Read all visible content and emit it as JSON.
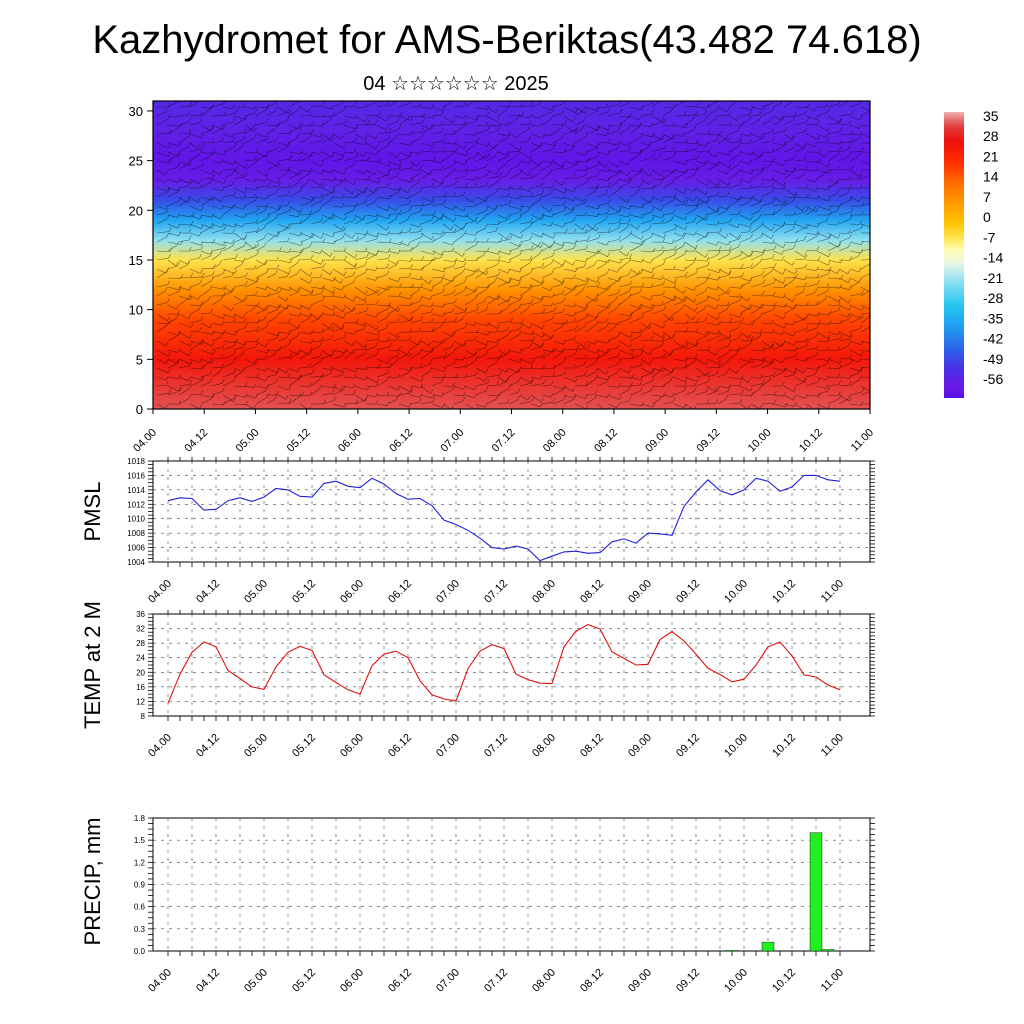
{
  "header": {
    "title": "Kazhydromet for AMS-Beriktas(43.482 74.618)",
    "subtitle": "04 ☆☆☆☆☆☆ 2025"
  },
  "colors": {
    "pmsl_line": "#1f1fdc",
    "temp_line": "#e01010",
    "precip_bar": "#22ee22",
    "frame": "#000000"
  },
  "chart_data": [
    {
      "type": "heatmap",
      "name": "vertical-profile",
      "x_tick_labels": [
        "04.00",
        "04.12",
        "05.00",
        "05.12",
        "06.00",
        "06.12",
        "07.00",
        "07.12",
        "08.00",
        "08.12",
        "09.00",
        "09.12",
        "10.00",
        "10.12",
        "11.00"
      ],
      "ylim": [
        0,
        31
      ],
      "y_ticks": [
        0,
        5,
        10,
        15,
        20,
        25,
        30
      ],
      "colorbar_labels": [
        "35",
        "28",
        "21",
        "14",
        "7",
        "0",
        "-7",
        "-14",
        "-21",
        "-28",
        "-35",
        "-42",
        "-49",
        "-56"
      ],
      "colorbar_range": [
        -60,
        38
      ],
      "profile": [
        {
          "level": 0,
          "value": 34
        },
        {
          "level": 5,
          "value": 26
        },
        {
          "level": 9,
          "value": 18
        },
        {
          "level": 12,
          "value": 8
        },
        {
          "level": 15,
          "value": -5
        },
        {
          "level": 17,
          "value": -20
        },
        {
          "level": 19,
          "value": -34
        },
        {
          "level": 21,
          "value": -46
        },
        {
          "level": 23,
          "value": -55
        },
        {
          "level": 25,
          "value": -58
        },
        {
          "level": 28,
          "value": -54
        },
        {
          "level": 31,
          "value": -52
        }
      ],
      "overlay": "wind barbs"
    },
    {
      "type": "line",
      "ylabel": "PMSL",
      "x_tick_labels": [
        "04.00",
        "04.12",
        "05.00",
        "05.12",
        "06.00",
        "06.12",
        "07.00",
        "07.12",
        "08.00",
        "08.12",
        "09.00",
        "09.12",
        "10.00",
        "10.12",
        "11.00"
      ],
      "ylim": [
        1004,
        1018
      ],
      "y_ticks": [
        1004,
        1006,
        1008,
        1010,
        1012,
        1014,
        1016,
        1018
      ],
      "hours": [
        0,
        3,
        6,
        9,
        12,
        15,
        18,
        21,
        24,
        27,
        30,
        33,
        36,
        39,
        42,
        45,
        48,
        51,
        54,
        57,
        60,
        63,
        66,
        69,
        72,
        75,
        78,
        81,
        84,
        87,
        90,
        93,
        96,
        99,
        102,
        105,
        108,
        111,
        114,
        117,
        120,
        123,
        126,
        129,
        132,
        135,
        138,
        141,
        144,
        147,
        150,
        153,
        156,
        159,
        162,
        165,
        168
      ],
      "values": [
        1012.5,
        1012.9,
        1012.8,
        1011.2,
        1011.3,
        1012.5,
        1012.9,
        1012.4,
        1013.0,
        1014.2,
        1014.0,
        1013.1,
        1013.0,
        1014.9,
        1015.2,
        1014.5,
        1014.3,
        1015.6,
        1014.8,
        1013.5,
        1012.7,
        1012.8,
        1011.8,
        1009.8,
        1009.2,
        1008.4,
        1007.3,
        1006.0,
        1005.8,
        1006.2,
        1005.8,
        1004.2,
        1004.8,
        1005.4,
        1005.5,
        1005.2,
        1005.3,
        1006.8,
        1007.2,
        1006.6,
        1008.0,
        1007.9,
        1007.7,
        1011.7,
        1013.7,
        1015.4,
        1013.9,
        1013.3,
        1014.0,
        1015.6,
        1015.2,
        1013.8,
        1014.4,
        1016.0,
        1016.0,
        1015.4,
        1015.2
      ]
    },
    {
      "type": "line",
      "ylabel": "TEMP at 2 M",
      "x_tick_labels": [
        "04.00",
        "04.12",
        "05.00",
        "05.12",
        "06.00",
        "06.12",
        "07.00",
        "07.12",
        "08.00",
        "08.12",
        "09.00",
        "09.12",
        "10.00",
        "10.12",
        "11.00"
      ],
      "ylim": [
        8,
        36
      ],
      "y_ticks": [
        8,
        12,
        16,
        20,
        24,
        28,
        32,
        36
      ],
      "hours": [
        0,
        3,
        6,
        9,
        12,
        15,
        18,
        21,
        24,
        27,
        30,
        33,
        36,
        39,
        42,
        45,
        48,
        51,
        54,
        57,
        60,
        63,
        66,
        69,
        72,
        75,
        78,
        81,
        84,
        87,
        90,
        93,
        96,
        99,
        102,
        105,
        108,
        111,
        114,
        117,
        120,
        123,
        126,
        129,
        132,
        135,
        138,
        141,
        144,
        147,
        150,
        153,
        156,
        159,
        162,
        165,
        168
      ],
      "values": [
        11.5,
        19.5,
        25.5,
        28.3,
        27.0,
        20.5,
        18.3,
        16.0,
        15.3,
        21.5,
        25.5,
        27.1,
        26.0,
        19.3,
        17.2,
        15.2,
        14.0,
        21.8,
        25.0,
        25.8,
        24.0,
        17.7,
        13.8,
        12.7,
        12.1,
        21.0,
        25.8,
        27.6,
        26.5,
        19.5,
        18.0,
        17.0,
        16.9,
        27.0,
        31.3,
        33.1,
        31.9,
        25.6,
        23.8,
        22.0,
        22.2,
        29.0,
        31.2,
        28.6,
        25.0,
        21.1,
        19.4,
        17.4,
        18.1,
        22.0,
        27.0,
        28.3,
        24.5,
        19.3,
        18.7,
        16.5,
        15.2
      ]
    },
    {
      "type": "bar",
      "ylabel": "PRECIP, mm",
      "x_tick_labels": [
        "04.00",
        "04.12",
        "05.00",
        "05.12",
        "06.00",
        "06.12",
        "07.00",
        "07.12",
        "08.00",
        "08.12",
        "09.00",
        "09.12",
        "10.00",
        "10.12",
        "11.00"
      ],
      "ylim": [
        0,
        1.8
      ],
      "y_ticks": [
        "0.0",
        "0.3",
        "0.6",
        "0.9",
        "1.2",
        "1.5",
        "1.8"
      ],
      "bars": [
        {
          "hour": 141,
          "value": 0.01
        },
        {
          "hour": 150,
          "value": 0.12
        },
        {
          "hour": 162,
          "value": 1.6
        },
        {
          "hour": 165,
          "value": 0.02
        }
      ]
    }
  ]
}
